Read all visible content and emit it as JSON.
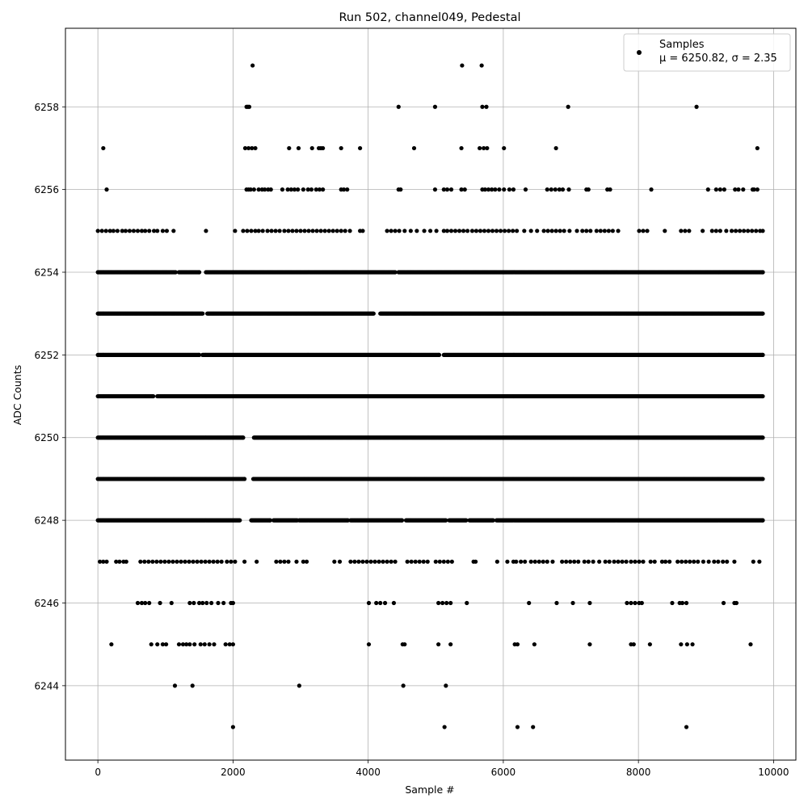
{
  "chart_data": {
    "type": "scatter",
    "title": "Run 502, channel049, Pedestal",
    "xlabel": "Sample #",
    "ylabel": "ADC Counts",
    "xlim": [
      -480,
      10330
    ],
    "ylim": [
      6242.2,
      6259.9
    ],
    "xticks": [
      0,
      2000,
      4000,
      6000,
      8000,
      10000
    ],
    "yticks": [
      6244,
      6246,
      6248,
      6250,
      6252,
      6254,
      6256,
      6258
    ],
    "grid": true,
    "legend": {
      "placement": "top-right",
      "entries": [
        {
          "label": "Samples",
          "stats": "μ = 6250.82, σ = 2.35"
        }
      ]
    },
    "series": [
      {
        "name": "Samples",
        "color": "#000000",
        "level_ranges": [
          {
            "y": 6248,
            "x_ranges": [
              [
                0,
                2100
              ],
              [
                2270,
                2550
              ],
              [
                2600,
                2950
              ],
              [
                2980,
                3700
              ],
              [
                3740,
                4500
              ],
              [
                4560,
                5150
              ],
              [
                5200,
                5450
              ],
              [
                5500,
                5850
              ],
              [
                5900,
                9840
              ]
            ]
          },
          {
            "y": 6249,
            "x_ranges": [
              [
                0,
                2170
              ],
              [
                2300,
                9840
              ]
            ]
          },
          {
            "y": 6250,
            "x_ranges": [
              [
                0,
                2150
              ],
              [
                2310,
                9840
              ]
            ]
          },
          {
            "y": 6251,
            "x_ranges": [
              [
                0,
                820
              ],
              [
                880,
                9840
              ]
            ]
          },
          {
            "y": 6252,
            "x_ranges": [
              [
                0,
                1500
              ],
              [
                1550,
                5050
              ],
              [
                5120,
                9840
              ]
            ]
          },
          {
            "y": 6253,
            "x_ranges": [
              [
                0,
                1550
              ],
              [
                1620,
                4080
              ],
              [
                4180,
                9840
              ]
            ]
          },
          {
            "y": 6254,
            "x_ranges": [
              [
                0,
                1150
              ],
              [
                1200,
                1500
              ],
              [
                1600,
                4400
              ],
              [
                4450,
                9840
              ]
            ]
          }
        ],
        "x_values_by_level": {
          "6259": [
            2290,
            5390,
            5680
          ],
          "6258": [
            2200,
            2220,
            2240,
            4450,
            4990,
            5690,
            5750,
            6960,
            8860
          ],
          "6257": [
            80,
            2180,
            2230,
            2280,
            2330,
            2830,
            2970,
            3170,
            3270,
            3300,
            3330,
            3600,
            3880,
            4680,
            5380,
            5650,
            5710,
            5760,
            6010,
            6780,
            9760
          ],
          "6256": [
            130,
            2200,
            2230,
            2260,
            2310,
            2380,
            2430,
            2470,
            2520,
            2560,
            2730,
            2810,
            2860,
            2910,
            2960,
            3040,
            3110,
            3160,
            3230,
            3280,
            3330,
            3600,
            3640,
            3690,
            4450,
            4480,
            4990,
            5120,
            5170,
            5230,
            5380,
            5430,
            5690,
            5730,
            5780,
            5830,
            5880,
            5940,
            6010,
            6090,
            6150,
            6330,
            6650,
            6710,
            6770,
            6830,
            6880,
            6970,
            7230,
            7260,
            7540,
            7580,
            8190,
            9030,
            9150,
            9210,
            9270,
            9430,
            9480,
            9550,
            9690,
            9710,
            9760
          ],
          "6255": [
            0,
            60,
            120,
            180,
            230,
            290,
            360,
            410,
            470,
            530,
            590,
            650,
            700,
            760,
            830,
            880,
            960,
            1020,
            1120,
            1600,
            2030,
            2150,
            2210,
            2270,
            2330,
            2380,
            2440,
            2510,
            2570,
            2630,
            2690,
            2760,
            2820,
            2880,
            2940,
            3000,
            3060,
            3120,
            3180,
            3240,
            3300,
            3360,
            3420,
            3480,
            3540,
            3600,
            3660,
            3730,
            3880,
            3920,
            4280,
            4340,
            4400,
            4460,
            4540,
            4630,
            4720,
            4830,
            4920,
            5010,
            5120,
            5170,
            5230,
            5290,
            5350,
            5410,
            5470,
            5540,
            5600,
            5660,
            5720,
            5780,
            5840,
            5900,
            5960,
            6020,
            6080,
            6140,
            6200,
            6310,
            6410,
            6500,
            6600,
            6660,
            6720,
            6780,
            6840,
            6900,
            6980,
            7090,
            7170,
            7230,
            7290,
            7380,
            7440,
            7500,
            7560,
            7620,
            7700,
            8010,
            8070,
            8130,
            8390,
            8630,
            8690,
            8750,
            8950,
            9090,
            9150,
            9210,
            9300,
            9380,
            9440,
            9500,
            9560,
            9620,
            9680,
            9740,
            9800,
            9840
          ],
          "6247": [
            30,
            80,
            130,
            270,
            320,
            380,
            420,
            630,
            690,
            750,
            810,
            870,
            930,
            990,
            1050,
            1110,
            1170,
            1230,
            1290,
            1350,
            1410,
            1470,
            1530,
            1590,
            1650,
            1710,
            1770,
            1830,
            1910,
            1970,
            2030,
            2170,
            2350,
            2640,
            2700,
            2760,
            2820,
            2940,
            3040,
            3090,
            3500,
            3580,
            3740,
            3800,
            3860,
            3920,
            3980,
            4040,
            4100,
            4160,
            4220,
            4280,
            4340,
            4400,
            4580,
            4640,
            4700,
            4760,
            4820,
            4880,
            5000,
            5060,
            5120,
            5180,
            5240,
            5560,
            5590,
            5910,
            6060,
            6150,
            6190,
            6260,
            6320,
            6410,
            6470,
            6530,
            6590,
            6650,
            6730,
            6870,
            6930,
            6990,
            7050,
            7110,
            7200,
            7260,
            7330,
            7420,
            7510,
            7570,
            7640,
            7700,
            7760,
            7820,
            7890,
            7950,
            8010,
            8070,
            8180,
            8240,
            8350,
            8400,
            8460,
            8580,
            8640,
            8700,
            8760,
            8820,
            8880,
            8960,
            9040,
            9120,
            9180,
            9250,
            9310,
            9420,
            9700,
            9790
          ],
          "6246": [
            590,
            650,
            700,
            760,
            920,
            1090,
            1360,
            1420,
            1500,
            1550,
            1610,
            1680,
            1780,
            1860,
            1970,
            2000,
            4010,
            4120,
            4180,
            4250,
            4380,
            5040,
            5100,
            5160,
            5220,
            5460,
            6380,
            6790,
            7030,
            7280,
            7830,
            7890,
            7950,
            8010,
            8050,
            8500,
            8610,
            8650,
            8710,
            9260,
            9420,
            9450
          ],
          "6245": [
            200,
            790,
            880,
            960,
            1010,
            1200,
            1260,
            1310,
            1360,
            1430,
            1520,
            1580,
            1650,
            1720,
            1890,
            1950,
            2000,
            4010,
            4510,
            4540,
            5040,
            5220,
            6170,
            6210,
            6460,
            7280,
            7890,
            7930,
            8170,
            8630,
            8720,
            8800,
            9660
          ],
          "6244": [
            1140,
            1400,
            2980,
            4520,
            5150
          ],
          "6243": [
            2000,
            5130,
            6210,
            6440,
            8710
          ]
        }
      }
    ]
  }
}
